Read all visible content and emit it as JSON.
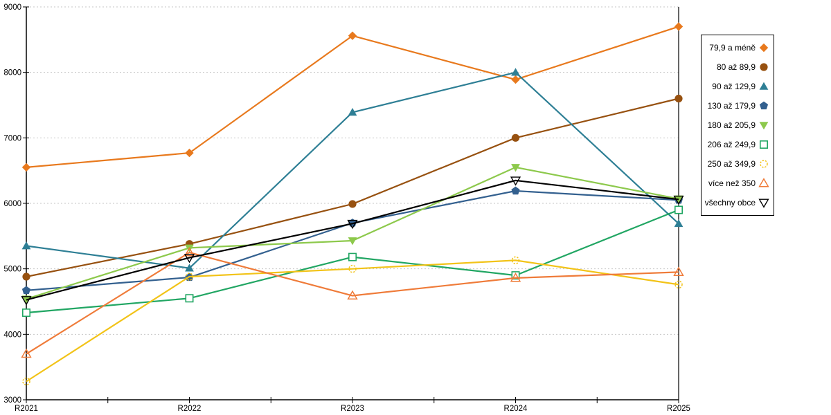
{
  "page": {
    "background": "#ffffff"
  },
  "chart_data": {
    "type": "line",
    "title": "",
    "x_categories": [
      "R2021",
      "R2022",
      "R2023",
      "R2024",
      "R2025"
    ],
    "y_axis": {
      "min": 3000,
      "max": 9000,
      "tick_step": 1000,
      "tick_labels": [
        "3000",
        "4000",
        "5000",
        "6000",
        "7000",
        "8000",
        "9000"
      ]
    },
    "grid": {
      "horizontal": true,
      "style": "dashed",
      "color": "#c6c6c6"
    },
    "axis_color": "#000000",
    "legend_position": "right",
    "series": [
      {
        "name": "79,9 a méně",
        "color": "#E8791D",
        "marker": "diamond-filled",
        "values": [
          6550,
          6770,
          8560,
          7890,
          8700
        ]
      },
      {
        "name": "80 až 89,9",
        "color": "#975110",
        "marker": "circle-filled",
        "values": [
          4880,
          5380,
          5990,
          7000,
          7600
        ]
      },
      {
        "name": "90 až 129,9",
        "color": "#2E7F95",
        "marker": "triangle-up-filled",
        "values": [
          5350,
          5010,
          7390,
          8000,
          5690
        ]
      },
      {
        "name": "130 až 179,9",
        "color": "#33608F",
        "marker": "pentagon-filled",
        "values": [
          4670,
          4870,
          5700,
          6190,
          6050
        ]
      },
      {
        "name": "180 až 205,9",
        "color": "#8DC94C",
        "marker": "triangle-down-filled",
        "values": [
          4540,
          5320,
          5430,
          6550,
          6070
        ]
      },
      {
        "name": "206 až 249,9",
        "color": "#21A663",
        "marker": "square-open",
        "values": [
          4330,
          4550,
          5180,
          4900,
          5900
        ]
      },
      {
        "name": "250 až 349,9",
        "color": "#F2C318",
        "marker": "circle-open-dashed",
        "values": [
          3280,
          4880,
          5000,
          5130,
          4760
        ]
      },
      {
        "name": "více než 350",
        "color": "#EF7B39",
        "marker": "triangle-up-open",
        "values": [
          3700,
          5250,
          4590,
          4860,
          4950
        ]
      },
      {
        "name": "všechny obce",
        "color": "#000000",
        "marker": "triangle-down-open",
        "values": [
          4525,
          5170,
          5690,
          6350,
          6060
        ]
      }
    ]
  }
}
